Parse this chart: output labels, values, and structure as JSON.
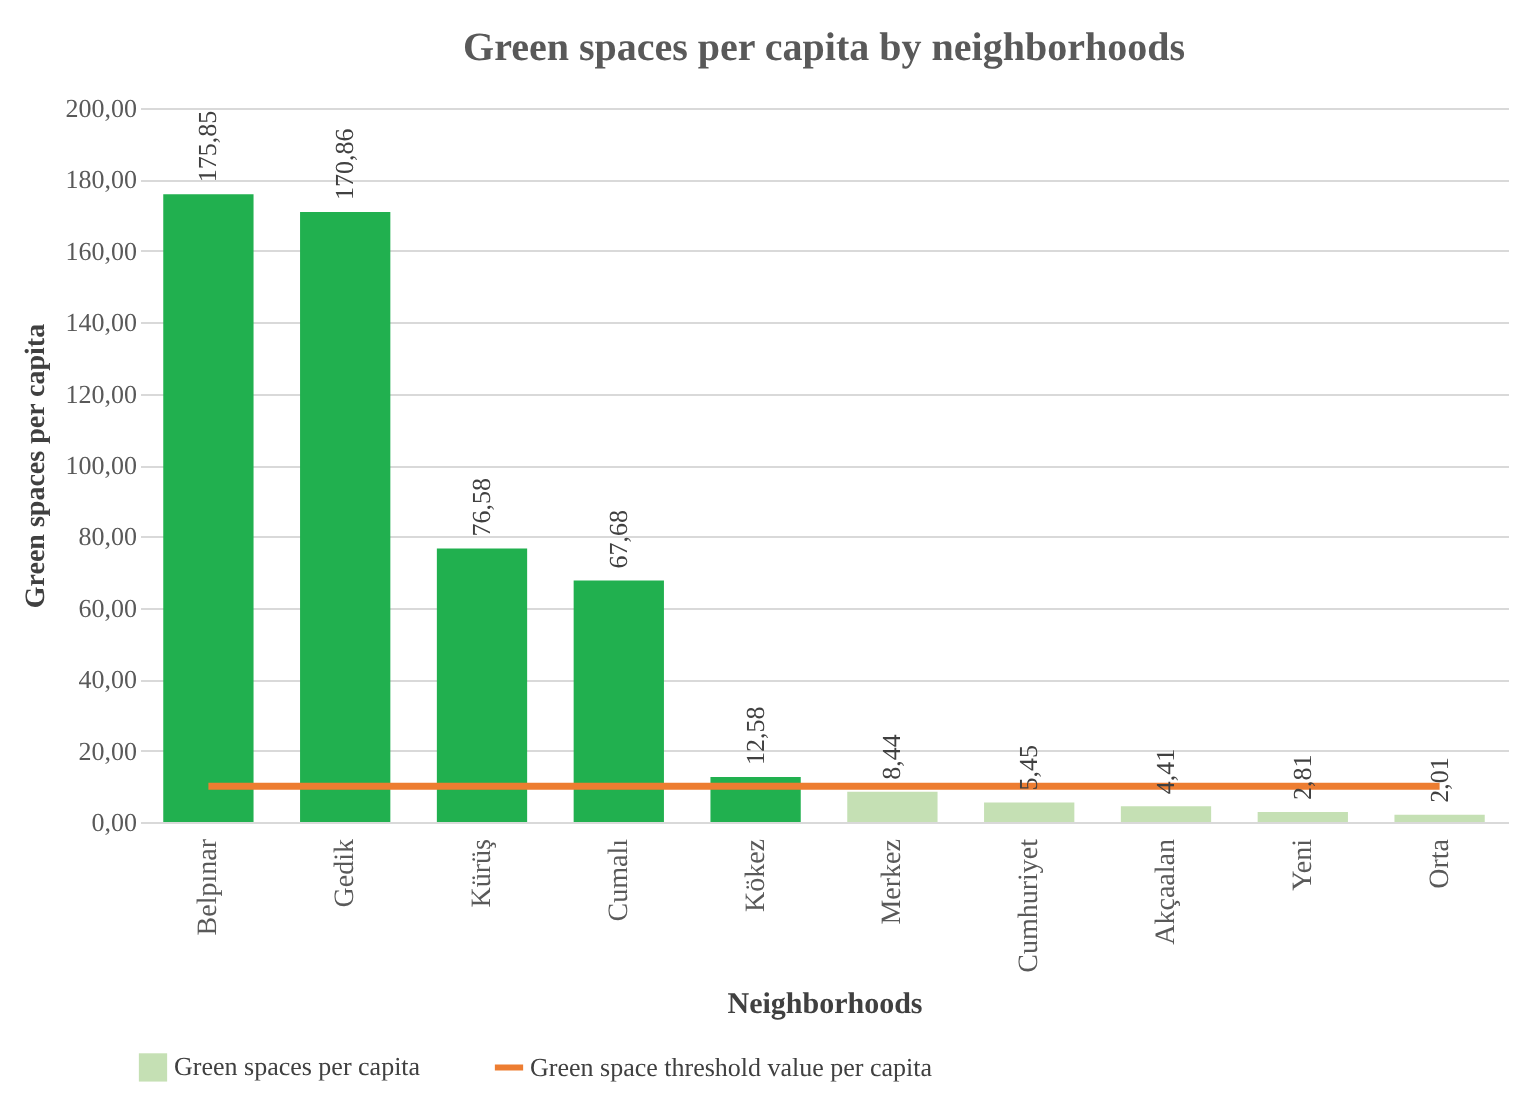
{
  "chart_data": {
    "type": "bar",
    "title": "Green spaces per capita by neighborhoods",
    "xlabel": "Neighborhoods",
    "ylabel": "Green spaces per capita",
    "categories": [
      "Belpınar",
      "Gedik",
      "Kürüş",
      "Cumalı",
      "Kökez",
      "Merkez",
      "Cumhuriyet",
      "Akçaalan",
      "Yeni",
      "Orta"
    ],
    "series": [
      {
        "name": "Green spaces per capita",
        "color": "#c5e0b4",
        "colors": [
          "#21b04f",
          "#21b04f",
          "#21b04f",
          "#21b04f",
          "#21b04f",
          "#c5e0b4",
          "#c5e0b4",
          "#c5e0b4",
          "#c5e0b4",
          "#c5e0b4"
        ],
        "values": [
          175.85,
          170.86,
          76.58,
          67.68,
          12.58,
          8.44,
          5.45,
          4.41,
          2.81,
          2.01
        ],
        "value_labels": [
          "175,85",
          "170,86",
          "76,58",
          "67,68",
          "12,58",
          "8,44",
          "5,45",
          "4,41",
          "2,81",
          "2,01"
        ]
      },
      {
        "name": "Green space threshold value per capita",
        "type": "line",
        "color": "#ed7d31",
        "values": [
          10,
          10,
          10,
          10,
          10,
          10,
          10,
          10,
          10,
          10
        ]
      }
    ],
    "ylim": [
      0,
      200
    ],
    "yticks": [
      {
        "value": 0,
        "label": "0,00"
      },
      {
        "value": 20,
        "label": "20,00"
      },
      {
        "value": 40,
        "label": "40,00"
      },
      {
        "value": 60,
        "label": "60,00"
      },
      {
        "value": 80,
        "label": "80,00"
      },
      {
        "value": 100,
        "label": "100,00"
      },
      {
        "value": 120,
        "label": "120,00"
      },
      {
        "value": 140,
        "label": "140,00"
      },
      {
        "value": 160,
        "label": "160,00"
      },
      {
        "value": 180,
        "label": "180,00"
      },
      {
        "value": 200,
        "label": "200,00"
      }
    ],
    "grid": "y",
    "legend": "bottom"
  }
}
